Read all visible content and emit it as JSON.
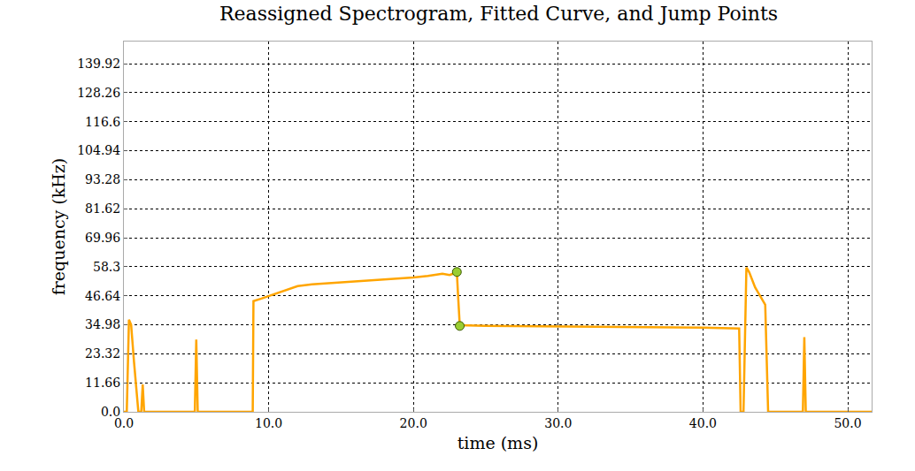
{
  "chart_data": {
    "type": "line",
    "title": "Reassigned Spectrogram, Fitted Curve, and Jump Points",
    "x_label": "time (ms)",
    "y_label": "frequency (kHz)",
    "xlim": [
      0,
      51.65
    ],
    "ylim": [
      0,
      148.8
    ],
    "xticks": [
      {
        "value": 0,
        "label": "0.0"
      },
      {
        "value": 10,
        "label": "10.0"
      },
      {
        "value": 20,
        "label": "20.0"
      },
      {
        "value": 30,
        "label": "30.0"
      },
      {
        "value": 40,
        "label": "40.0"
      },
      {
        "value": 50,
        "label": "50.0"
      }
    ],
    "yticks": [
      {
        "value": 0,
        "label": "0.0"
      },
      11.66,
      23.32,
      34.98,
      46.64,
      58.3,
      69.96,
      81.62,
      93.28,
      104.94,
      116.6,
      128.26,
      139.92
    ],
    "grid": true,
    "series": [
      {
        "type": "line",
        "color": "#ffa500",
        "line_style": "solid",
        "x": [
          0,
          0.2,
          0.35,
          0.5,
          0.7,
          1.0,
          1.2,
          1.3,
          1.4,
          1.6,
          4.9,
          5.0,
          5.1,
          8.9,
          8.95,
          9.5,
          10,
          11,
          12,
          13,
          14,
          15,
          16,
          18,
          20,
          21,
          22,
          22.5,
          23.0,
          23.1,
          23.2,
          25,
          30,
          35,
          40,
          42.5,
          42.6,
          42.8,
          43.0,
          43.2,
          43.6,
          44.0,
          44.3,
          44.5,
          46.9,
          47.0,
          47.1,
          51.65
        ],
        "values": [
          0,
          0,
          37,
          35,
          20,
          0,
          0,
          11,
          0,
          0,
          0,
          29,
          0,
          0,
          44.5,
          45.5,
          46.5,
          48.5,
          50.5,
          51.2,
          51.6,
          52,
          52.3,
          53,
          54,
          54.6,
          55.5,
          55,
          56,
          45,
          34.8,
          34.5,
          34.3,
          34,
          33.8,
          33.5,
          0,
          0,
          58,
          56,
          50,
          46,
          43,
          0,
          0,
          30,
          0,
          0
        ]
      },
      {
        "type": "scatter",
        "color": "#9acd32",
        "marker": "circle",
        "x": [
          23.0,
          23.2
        ],
        "values": [
          56.2,
          34.5
        ]
      }
    ]
  }
}
